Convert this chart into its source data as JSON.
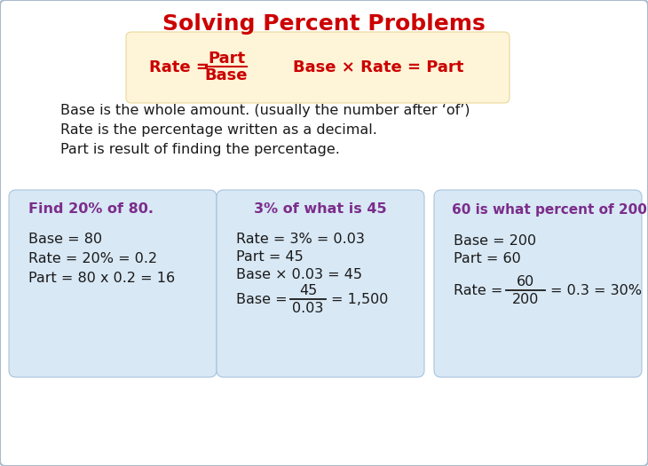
{
  "title": "Solving Percent Problems",
  "title_color": "#cc0000",
  "title_fontsize": 18,
  "bg_color": "#ffffff",
  "border_color": "#aabbcc",
  "formula_box_color": "#fef5d8",
  "formula_box_border": "#e8d89a",
  "example_box_color": "#d8e8f5",
  "example_box_border": "#a8c4dd",
  "text_color": "#1a1a1a",
  "purple_color": "#7b2d8b",
  "desc_lines": [
    "Base is the whole amount. (usually the number after ‘of’)",
    "Rate is the percentage written as a decimal.",
    "Part is result of finding the percentage."
  ],
  "ex1_title": "Find 20% of 80.",
  "ex1_lines": [
    "Base = 80",
    "Rate = 20% = 0.2",
    "Part = 80 x 0.2 = 16"
  ],
  "ex2_title": "3% of what is 45",
  "ex2_lines": [
    "Rate = 3% = 0.03",
    "Part = 45",
    "Base × 0.03 = 45"
  ],
  "ex3_title": "60 is what percent of 200",
  "ex3_lines": [
    "Base = 200",
    "Part = 60"
  ]
}
